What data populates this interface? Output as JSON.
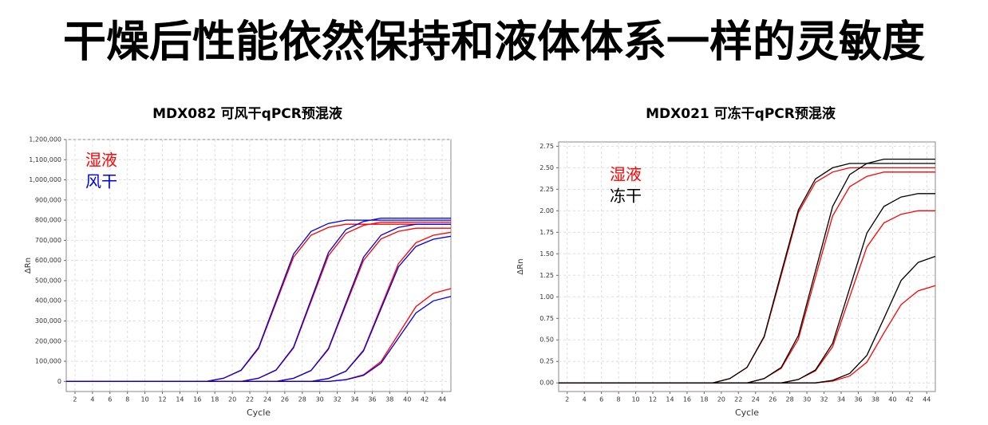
{
  "header": {
    "title": "干燥后性能依然保持和液体体系一样的灵敏度"
  },
  "chart_data": [
    {
      "type": "line",
      "title": "MDX082 可风干qPCR预混液",
      "xlabel": "Cycle",
      "ylabel": "ΔRn",
      "x": [
        1,
        3,
        5,
        7,
        9,
        11,
        13,
        15,
        17,
        19,
        21,
        23,
        25,
        27,
        29,
        31,
        33,
        35,
        37,
        39,
        41,
        43,
        45
      ],
      "xlim": [
        1,
        45
      ],
      "xticks": [
        2,
        4,
        6,
        8,
        10,
        12,
        14,
        16,
        18,
        20,
        22,
        24,
        26,
        28,
        30,
        32,
        34,
        36,
        38,
        40,
        42,
        44
      ],
      "ylim": [
        -50000,
        1200000
      ],
      "yticks": [
        0,
        {
          "value": 100000,
          "label": "100,000"
        },
        {
          "value": 200000,
          "label": "200,000"
        },
        {
          "value": 300000,
          "label": "300,000"
        },
        {
          "value": 400000,
          "label": "400,000"
        },
        {
          "value": 500000,
          "label": "500,000"
        },
        {
          "value": 600000,
          "label": "600,000"
        },
        {
          "value": 700000,
          "label": "700,000"
        },
        {
          "value": 800000,
          "label": "800,000"
        },
        {
          "value": 900000,
          "label": "900,000"
        },
        {
          "value": 1000000,
          "label": "1,000,000"
        },
        {
          "value": 1100000,
          "label": "1,100,000"
        },
        {
          "value": 1200000,
          "label": "1,200,000"
        }
      ],
      "grid": true,
      "series": [
        {
          "name": "湿液",
          "color": "#ff0000",
          "values": [
            0,
            0,
            0,
            0,
            0,
            0,
            0,
            0,
            0,
            15600,
            54600,
            163800,
            390000,
            616200,
            725400,
            764400,
            780000,
            780000,
            780000,
            780000,
            780000,
            780000,
            780000
          ]
        },
        {
          "name": "风干",
          "color": "#0000e0",
          "values": [
            0,
            0,
            0,
            0,
            0,
            0,
            0,
            0,
            0,
            16000,
            56000,
            168000,
            400000,
            632000,
            744000,
            784000,
            800000,
            800000,
            800000,
            800000,
            800000,
            800000,
            800000
          ]
        },
        {
          "name": "湿液",
          "color": "#ff0000",
          "values": [
            0,
            0,
            0,
            0,
            0,
            0,
            0,
            0,
            0,
            0,
            0,
            15800,
            55300,
            165900,
            395000,
            624100,
            734700,
            774200,
            790000,
            790000,
            790000,
            790000,
            790000
          ]
        },
        {
          "name": "风干",
          "color": "#0000e0",
          "values": [
            0,
            0,
            0,
            0,
            0,
            0,
            0,
            0,
            0,
            0,
            0,
            16200,
            56700,
            170100,
            405000,
            639900,
            753300,
            793800,
            810000,
            810000,
            810000,
            810000,
            810000
          ]
        },
        {
          "name": "湿液",
          "color": "#ff0000",
          "values": [
            0,
            0,
            0,
            0,
            0,
            0,
            0,
            0,
            0,
            0,
            0,
            0,
            0,
            15200,
            53200,
            159600,
            380000,
            600400,
            706800,
            744800,
            760000,
            760000,
            760000
          ]
        },
        {
          "name": "风干",
          "color": "#0000e0",
          "values": [
            0,
            0,
            0,
            0,
            0,
            0,
            0,
            0,
            0,
            0,
            0,
            0,
            0,
            15600,
            54600,
            163800,
            390000,
            616200,
            725400,
            764400,
            780000,
            780000,
            780000
          ]
        },
        {
          "name": "湿液",
          "color": "#ff0000",
          "values": [
            0,
            0,
            0,
            0,
            0,
            0,
            0,
            0,
            0,
            0,
            0,
            0,
            0,
            0,
            0,
            14800,
            51800,
            155400,
            370000,
            584600,
            688200,
            725200,
            740000
          ]
        },
        {
          "name": "风干",
          "color": "#0000e0",
          "values": [
            0,
            0,
            0,
            0,
            0,
            0,
            0,
            0,
            0,
            0,
            0,
            0,
            0,
            0,
            0,
            14400,
            50400,
            151200,
            360000,
            568800,
            669600,
            705600,
            720000
          ]
        },
        {
          "name": "湿液",
          "color": "#ff0000",
          "values": [
            0,
            0,
            0,
            0,
            0,
            0,
            0,
            0,
            0,
            0,
            0,
            0,
            0,
            0,
            0,
            0,
            9400,
            32900,
            98700,
            235000,
            371300,
            437100,
            460600
          ]
        },
        {
          "name": "风干",
          "color": "#0000e0",
          "values": [
            0,
            0,
            0,
            0,
            0,
            0,
            0,
            0,
            0,
            0,
            0,
            0,
            0,
            0,
            0,
            0,
            8600,
            30100,
            90300,
            215000,
            339700,
            399900,
            421400
          ]
        }
      ]
    },
    {
      "type": "line",
      "title": "MDX021 可冻干qPCR预混液",
      "xlabel": "Cycle",
      "ylabel": "ΔRn",
      "x": [
        1,
        3,
        5,
        7,
        9,
        11,
        13,
        15,
        17,
        19,
        21,
        23,
        25,
        27,
        29,
        31,
        33,
        35,
        37,
        39,
        41,
        43,
        45
      ],
      "xlim": [
        1,
        45
      ],
      "xticks": [
        2,
        4,
        6,
        8,
        10,
        12,
        14,
        16,
        18,
        20,
        22,
        24,
        26,
        28,
        30,
        32,
        34,
        36,
        38,
        40,
        42,
        44
      ],
      "ylim": [
        -0.1,
        2.8
      ],
      "yticks": [
        {
          "value": 0,
          "label": "0.00"
        },
        {
          "value": 0.25,
          "label": "0.25"
        },
        {
          "value": 0.5,
          "label": "0.50"
        },
        {
          "value": 0.75,
          "label": "0.75"
        },
        {
          "value": 1,
          "label": "1.00"
        },
        {
          "value": 1.25,
          "label": "1.25"
        },
        {
          "value": 1.5,
          "label": "1.50"
        },
        {
          "value": 1.75,
          "label": "1.75"
        },
        {
          "value": 2,
          "label": "2.00"
        },
        {
          "value": 2.25,
          "label": "2.25"
        },
        {
          "value": 2.5,
          "label": "2.50"
        },
        {
          "value": 2.75,
          "label": "2.75"
        }
      ],
      "grid": true,
      "series": [
        {
          "name": "湿液",
          "color": "#ff0000",
          "values": [
            0,
            0,
            0,
            0,
            0,
            0,
            0,
            0,
            0,
            0,
            0.05,
            0.18,
            0.53,
            1.25,
            1.98,
            2.33,
            2.45,
            2.5,
            2.5,
            2.5,
            2.5,
            2.5,
            2.5
          ]
        },
        {
          "name": "冻干",
          "color": "#000000",
          "values": [
            0,
            0,
            0,
            0,
            0,
            0,
            0,
            0,
            0,
            0,
            0.05,
            0.18,
            0.54,
            1.28,
            2.01,
            2.37,
            2.5,
            2.55,
            2.55,
            2.55,
            2.55,
            2.55,
            2.55
          ]
        },
        {
          "name": "湿液",
          "color": "#ff0000",
          "values": [
            0,
            0,
            0,
            0,
            0,
            0,
            0,
            0,
            0,
            0,
            0,
            0,
            0.05,
            0.17,
            0.51,
            1.23,
            1.94,
            2.28,
            2.4,
            2.45,
            2.45,
            2.45,
            2.45
          ]
        },
        {
          "name": "冻干",
          "color": "#000000",
          "values": [
            0,
            0,
            0,
            0,
            0,
            0,
            0,
            0,
            0,
            0,
            0,
            0,
            0.05,
            0.18,
            0.55,
            1.3,
            2.05,
            2.42,
            2.55,
            2.6,
            2.6,
            2.6,
            2.6
          ]
        },
        {
          "name": "湿液",
          "color": "#ff0000",
          "values": [
            0,
            0,
            0,
            0,
            0,
            0,
            0,
            0,
            0,
            0,
            0,
            0,
            0,
            0,
            0.04,
            0.14,
            0.42,
            1.0,
            1.58,
            1.86,
            1.96,
            2.0,
            2.0
          ]
        },
        {
          "name": "冻干",
          "color": "#000000",
          "values": [
            0,
            0,
            0,
            0,
            0,
            0,
            0,
            0,
            0,
            0,
            0,
            0,
            0,
            0,
            0.04,
            0.15,
            0.46,
            1.1,
            1.74,
            2.05,
            2.16,
            2.2,
            2.2
          ]
        },
        {
          "name": "湿液",
          "color": "#ff0000",
          "values": [
            0,
            0,
            0,
            0,
            0,
            0,
            0,
            0,
            0,
            0,
            0,
            0,
            0,
            0,
            0,
            0,
            0.02,
            0.08,
            0.24,
            0.58,
            0.91,
            1.07,
            1.13
          ]
        },
        {
          "name": "冻干",
          "color": "#000000",
          "values": [
            0,
            0,
            0,
            0,
            0,
            0,
            0,
            0,
            0,
            0,
            0,
            0,
            0,
            0,
            0,
            0,
            0.03,
            0.11,
            0.32,
            0.75,
            1.19,
            1.4,
            1.47
          ]
        }
      ]
    }
  ]
}
